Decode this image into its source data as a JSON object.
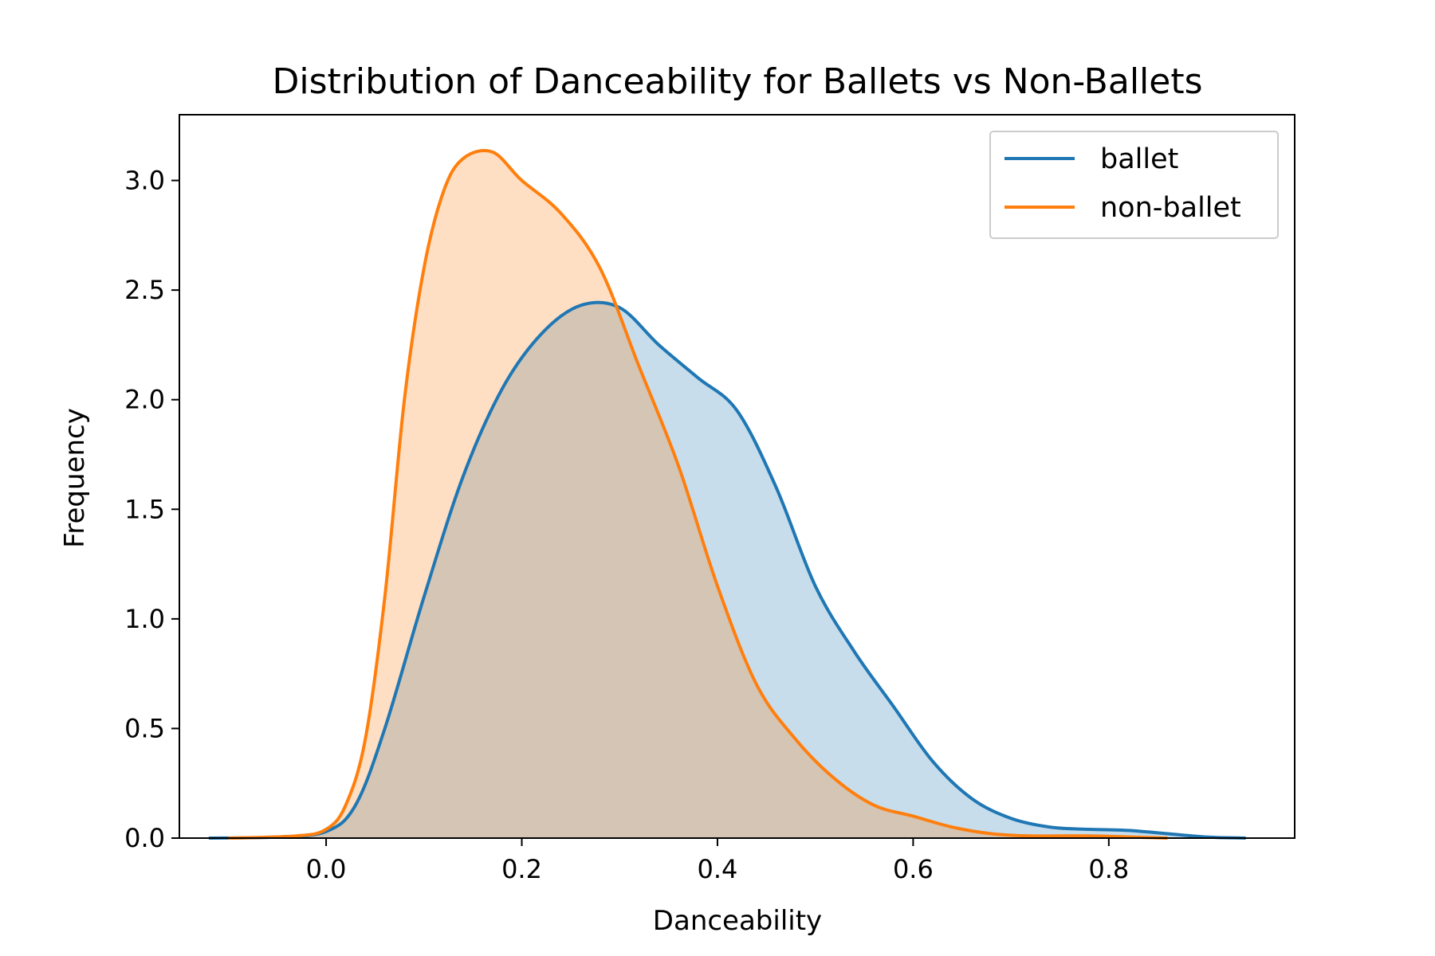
{
  "chart_data": {
    "type": "area",
    "title": "Distribution of Danceability for Ballets vs Non-Ballets",
    "xlabel": "Danceability",
    "ylabel": "Frequency",
    "xlim": [
      -0.15,
      0.99
    ],
    "ylim": [
      0,
      3.3
    ],
    "xticks": [
      0.0,
      0.2,
      0.4,
      0.6,
      0.8
    ],
    "xtick_labels": [
      "0.0",
      "0.2",
      "0.4",
      "0.6",
      "0.8"
    ],
    "yticks": [
      0.0,
      0.5,
      1.0,
      1.5,
      2.0,
      2.5,
      3.0
    ],
    "ytick_labels": [
      "0.0",
      "0.5",
      "1.0",
      "1.5",
      "2.0",
      "2.5",
      "3.0"
    ],
    "grid": false,
    "legend_position": "top-right",
    "series": [
      {
        "name": "ballet",
        "color": "#1f77b4",
        "fill_color": "#1f77b4",
        "x": [
          -0.12,
          -0.05,
          0.0,
          0.03,
          0.06,
          0.1,
          0.14,
          0.18,
          0.22,
          0.26,
          0.3,
          0.34,
          0.38,
          0.42,
          0.46,
          0.5,
          0.54,
          0.58,
          0.62,
          0.66,
          0.7,
          0.74,
          0.78,
          0.82,
          0.86,
          0.9,
          0.94
        ],
        "y": [
          0.0,
          0.005,
          0.03,
          0.15,
          0.5,
          1.1,
          1.65,
          2.05,
          2.3,
          2.43,
          2.42,
          2.25,
          2.1,
          1.95,
          1.6,
          1.15,
          0.85,
          0.6,
          0.35,
          0.18,
          0.09,
          0.05,
          0.04,
          0.035,
          0.02,
          0.005,
          0.0
        ]
      },
      {
        "name": "non-ballet",
        "color": "#ff7f0e",
        "fill_color": "#ff7f0e",
        "x": [
          -0.1,
          -0.03,
          0.0,
          0.02,
          0.04,
          0.06,
          0.08,
          0.1,
          0.12,
          0.14,
          0.17,
          0.2,
          0.24,
          0.28,
          0.32,
          0.36,
          0.4,
          0.44,
          0.48,
          0.52,
          0.56,
          0.6,
          0.64,
          0.68,
          0.72,
          0.78,
          0.86
        ],
        "y": [
          0.0,
          0.01,
          0.04,
          0.15,
          0.45,
          1.1,
          2.0,
          2.6,
          2.95,
          3.1,
          3.13,
          3.0,
          2.85,
          2.6,
          2.15,
          1.7,
          1.15,
          0.7,
          0.45,
          0.27,
          0.15,
          0.1,
          0.05,
          0.02,
          0.01,
          0.01,
          0.0
        ]
      }
    ]
  }
}
